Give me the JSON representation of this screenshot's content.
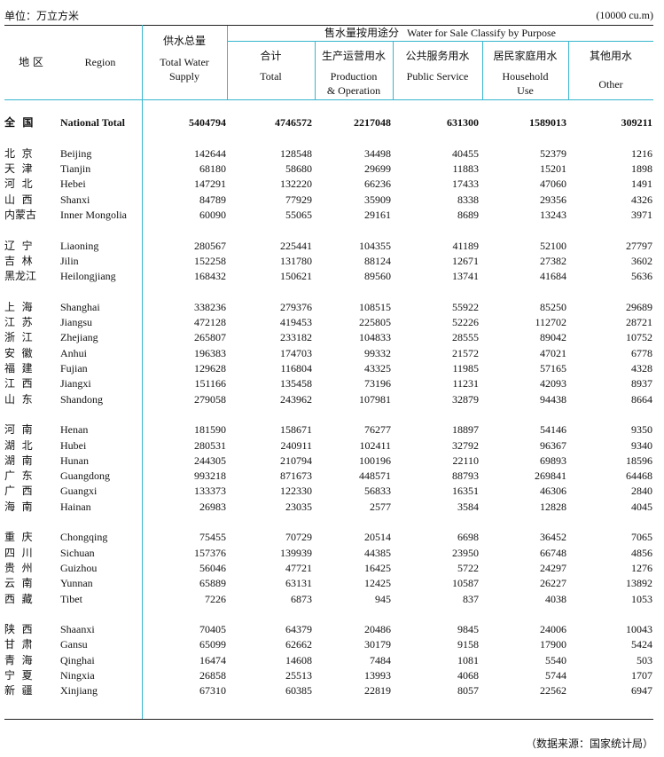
{
  "unit_cn": "单位：万立方米",
  "unit_en": "(10000 cu.m)",
  "header": {
    "region_cn": "地  区",
    "region_en": "Region",
    "supply_cn": "供水总量",
    "supply_en1": "Total Water",
    "supply_en2": "Supply",
    "sale_group": "售水量按用途分   Water for Sale Classify by Purpose",
    "total_cn": "合计",
    "total_en": "Total",
    "prod_cn": "生产运营用水",
    "prod_en1": "Production",
    "prod_en2": "& Operation",
    "public_cn": "公共服务用水",
    "public_en": "Public Service",
    "house_cn": "居民家庭用水",
    "house_en1": "Household",
    "house_en2": "Use",
    "other_cn": "其他用水",
    "other_en": "Other"
  },
  "national": {
    "cn": "全  国",
    "en": "National Total",
    "values": [
      "5404794",
      "4746572",
      "2217048",
      "631300",
      "1589013",
      "309211"
    ]
  },
  "groups": [
    [
      {
        "cn": "北  京",
        "en": "Beijing",
        "values": [
          "142644",
          "128548",
          "34498",
          "40455",
          "52379",
          "1216"
        ]
      },
      {
        "cn": "天  津",
        "en": "Tianjin",
        "values": [
          "68180",
          "58680",
          "29699",
          "11883",
          "15201",
          "1898"
        ]
      },
      {
        "cn": "河  北",
        "en": "Hebei",
        "values": [
          "147291",
          "132220",
          "66236",
          "17433",
          "47060",
          "1491"
        ]
      },
      {
        "cn": "山  西",
        "en": "Shanxi",
        "values": [
          "84789",
          "77929",
          "35909",
          "8338",
          "29356",
          "4326"
        ]
      },
      {
        "cn": "内蒙古",
        "en": "Inner Mongolia",
        "values": [
          "60090",
          "55065",
          "29161",
          "8689",
          "13243",
          "3971"
        ]
      }
    ],
    [
      {
        "cn": "辽  宁",
        "en": "Liaoning",
        "values": [
          "280567",
          "225441",
          "104355",
          "41189",
          "52100",
          "27797"
        ]
      },
      {
        "cn": "吉  林",
        "en": "Jilin",
        "values": [
          "152258",
          "131780",
          "88124",
          "12671",
          "27382",
          "3602"
        ]
      },
      {
        "cn": "黑龙江",
        "en": "Heilongjiang",
        "values": [
          "168432",
          "150621",
          "89560",
          "13741",
          "41684",
          "5636"
        ]
      }
    ],
    [
      {
        "cn": "上  海",
        "en": "Shanghai",
        "values": [
          "338236",
          "279376",
          "108515",
          "55922",
          "85250",
          "29689"
        ]
      },
      {
        "cn": "江  苏",
        "en": "Jiangsu",
        "values": [
          "472128",
          "419453",
          "225805",
          "52226",
          "112702",
          "28721"
        ]
      },
      {
        "cn": "浙  江",
        "en": "Zhejiang",
        "values": [
          "265807",
          "233182",
          "104833",
          "28555",
          "89042",
          "10752"
        ]
      },
      {
        "cn": "安  徽",
        "en": "Anhui",
        "values": [
          "196383",
          "174703",
          "99332",
          "21572",
          "47021",
          "6778"
        ]
      },
      {
        "cn": "福  建",
        "en": "Fujian",
        "values": [
          "129628",
          "116804",
          "43325",
          "11985",
          "57165",
          "4328"
        ]
      },
      {
        "cn": "江  西",
        "en": "Jiangxi",
        "values": [
          "151166",
          "135458",
          "73196",
          "11231",
          "42093",
          "8937"
        ]
      },
      {
        "cn": "山  东",
        "en": "Shandong",
        "values": [
          "279058",
          "243962",
          "107981",
          "32879",
          "94438",
          "8664"
        ]
      }
    ],
    [
      {
        "cn": "河  南",
        "en": "Henan",
        "values": [
          "181590",
          "158671",
          "76277",
          "18897",
          "54146",
          "9350"
        ]
      },
      {
        "cn": "湖  北",
        "en": "Hubei",
        "values": [
          "280531",
          "240911",
          "102411",
          "32792",
          "96367",
          "9340"
        ]
      },
      {
        "cn": "湖  南",
        "en": "Hunan",
        "values": [
          "244305",
          "210794",
          "100196",
          "22110",
          "69893",
          "18596"
        ]
      },
      {
        "cn": "广  东",
        "en": "Guangdong",
        "values": [
          "993218",
          "871673",
          "448571",
          "88793",
          "269841",
          "64468"
        ]
      },
      {
        "cn": "广  西",
        "en": "Guangxi",
        "values": [
          "133373",
          "122330",
          "56833",
          "16351",
          "46306",
          "2840"
        ]
      },
      {
        "cn": "海  南",
        "en": "Hainan",
        "values": [
          "26983",
          "23035",
          "2577",
          "3584",
          "12828",
          "4045"
        ]
      }
    ],
    [
      {
        "cn": "重  庆",
        "en": "Chongqing",
        "values": [
          "75455",
          "70729",
          "20514",
          "6698",
          "36452",
          "7065"
        ]
      },
      {
        "cn": "四  川",
        "en": "Sichuan",
        "values": [
          "157376",
          "139939",
          "44385",
          "23950",
          "66748",
          "4856"
        ]
      },
      {
        "cn": "贵  州",
        "en": "Guizhou",
        "values": [
          "56046",
          "47721",
          "16425",
          "5722",
          "24297",
          "1276"
        ]
      },
      {
        "cn": "云  南",
        "en": "Yunnan",
        "values": [
          "65889",
          "63131",
          "12425",
          "10587",
          "26227",
          "13892"
        ]
      },
      {
        "cn": "西  藏",
        "en": "Tibet",
        "values": [
          "7226",
          "6873",
          "945",
          "837",
          "4038",
          "1053"
        ]
      }
    ],
    [
      {
        "cn": "陕  西",
        "en": "Shaanxi",
        "values": [
          "70405",
          "64379",
          "20486",
          "9845",
          "24006",
          "10043"
        ]
      },
      {
        "cn": "甘  肃",
        "en": "Gansu",
        "values": [
          "65099",
          "62662",
          "30179",
          "9158",
          "17900",
          "5424"
        ]
      },
      {
        "cn": "青  海",
        "en": "Qinghai",
        "values": [
          "16474",
          "14608",
          "7484",
          "1081",
          "5540",
          "503"
        ]
      },
      {
        "cn": "宁  夏",
        "en": "Ningxia",
        "values": [
          "26858",
          "25513",
          "13993",
          "4068",
          "5744",
          "1707"
        ]
      },
      {
        "cn": "新  疆",
        "en": "Xinjiang",
        "values": [
          "67310",
          "60385",
          "22819",
          "8057",
          "22562",
          "6947"
        ]
      }
    ]
  ],
  "source": "（数据来源：国家统计局）",
  "colors": {
    "rule": "#36b6cf",
    "text": "#111111"
  }
}
